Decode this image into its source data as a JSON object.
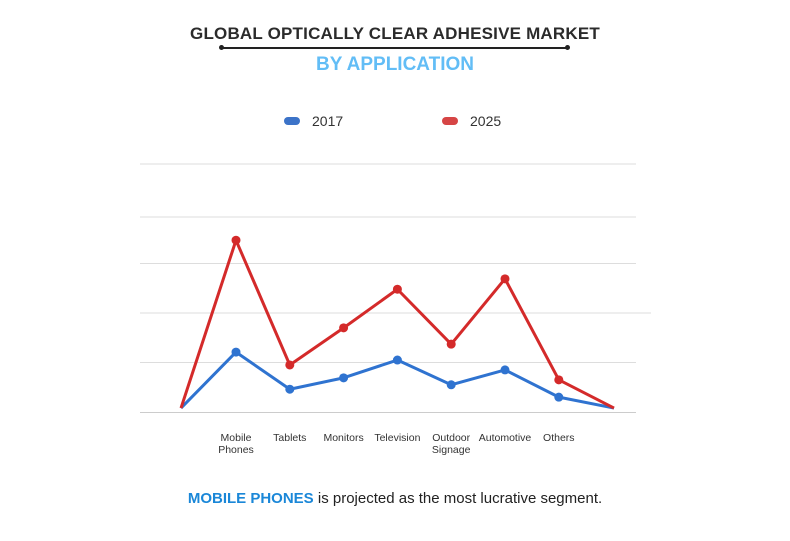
{
  "chart_data": {
    "type": "line",
    "title": "GLOBAL OPTICALLY CLEAR ADHESIVE MARKET",
    "subtitle": "BY APPLICATION",
    "categories": [
      "Mobile Phones",
      "Tablets",
      "Monitors",
      "Television",
      "Outdoor Signage",
      "Automotive",
      "Others"
    ],
    "category_labels": [
      [
        "Mobile",
        "Phones"
      ],
      [
        "Tablets"
      ],
      [
        "Monitors"
      ],
      [
        "Television"
      ],
      [
        "Outdoor",
        "Signage"
      ],
      [
        "Automotive"
      ],
      [
        "Others"
      ]
    ],
    "series": [
      {
        "name": "2017",
        "color": "#2f73d0",
        "start": 0.08,
        "end": 0.08,
        "values": [
          1.21,
          0.46,
          0.69,
          1.05,
          0.55,
          0.85,
          0.3
        ]
      },
      {
        "name": "2025",
        "color": "#d42a2a",
        "start": 0.08,
        "end": 0.08,
        "values": [
          3.47,
          0.95,
          1.7,
          2.48,
          1.37,
          2.69,
          0.65
        ]
      }
    ],
    "ylim": [
      0,
      5
    ],
    "grid": true,
    "legend_position": "top-center",
    "xlabel": "",
    "ylabel": ""
  },
  "footer": {
    "highlight": "MOBILE PHONES",
    "rest": " is projected as the most lucrative segment."
  }
}
